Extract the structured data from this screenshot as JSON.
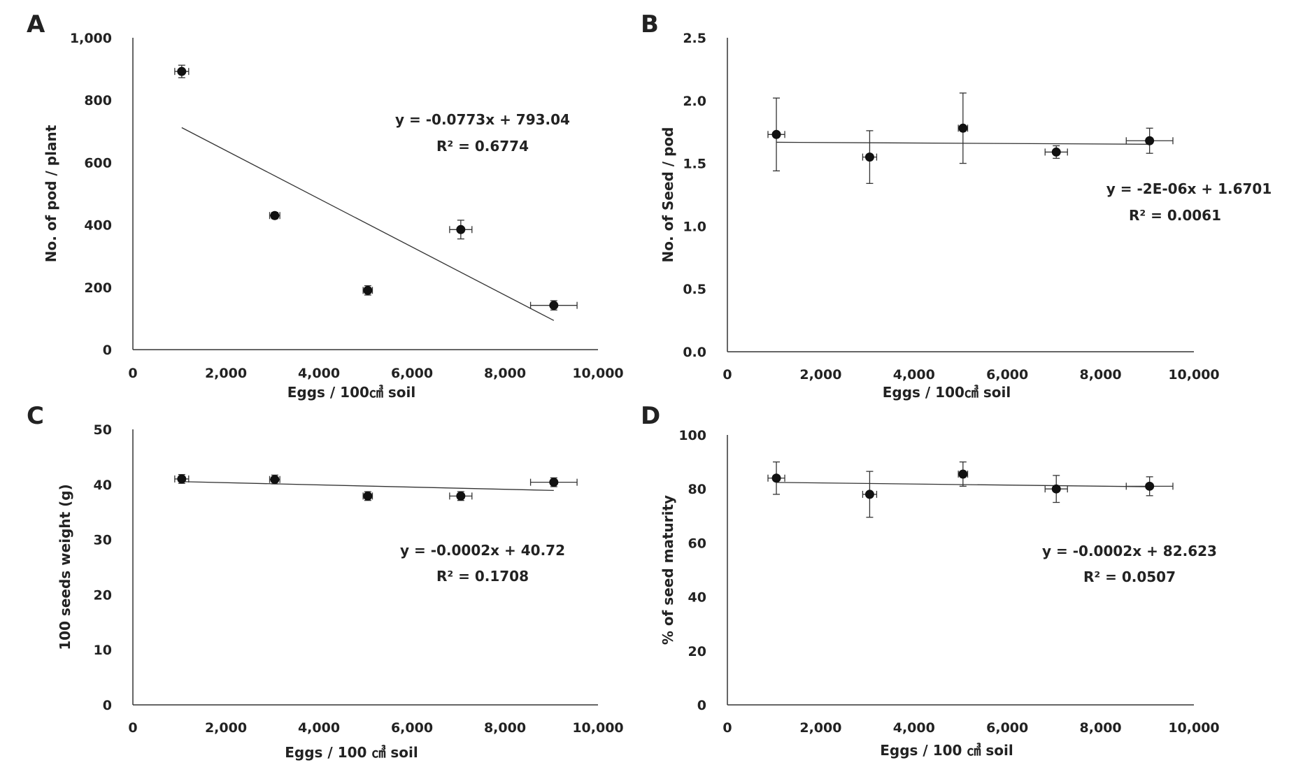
{
  "chart_data": [
    {
      "panel": "A",
      "type": "scatter",
      "xlabel": "Eggs / 100㎤ soil",
      "ylabel": "No. of pod / plant",
      "xlim": [
        0,
        10000
      ],
      "ylim": [
        0,
        1000
      ],
      "xticks": [
        0,
        2000,
        4000,
        6000,
        8000,
        10000
      ],
      "xtick_labels": [
        "0",
        "2,000",
        "4,000",
        "6,000",
        "8,000",
        "10,000"
      ],
      "yticks": [
        0,
        200,
        400,
        600,
        800,
        1000
      ],
      "ytick_labels": [
        "0",
        "200",
        "400",
        "600",
        "800",
        "1,000"
      ],
      "points": [
        {
          "x": 1050,
          "y": 892,
          "xerr": 150,
          "yerr": 20
        },
        {
          "x": 3050,
          "y": 430,
          "xerr": 110,
          "yerr": 10
        },
        {
          "x": 5050,
          "y": 190,
          "xerr": 100,
          "yerr": 15
        },
        {
          "x": 7050,
          "y": 385,
          "xerr": 240,
          "yerr": 30
        },
        {
          "x": 9050,
          "y": 142,
          "xerr": 500,
          "yerr": 15
        }
      ],
      "trendline": {
        "slope": -0.0773,
        "intercept": 793.04,
        "x_range": [
          1050,
          9050
        ]
      },
      "equation": "y = -0.0773x + 793.04",
      "r_squared": "R² = 0.6774"
    },
    {
      "panel": "B",
      "type": "scatter",
      "xlabel": "Eggs / 100㎤ soil",
      "ylabel": "No. of Seed / pod",
      "xlim": [
        0,
        10000
      ],
      "ylim": [
        0,
        2.5
      ],
      "xticks": [
        0,
        2000,
        4000,
        6000,
        8000,
        10000
      ],
      "xtick_labels": [
        "0",
        "2,000",
        "4,000",
        "6,000",
        "8,000",
        "10,000"
      ],
      "yticks": [
        0,
        0.5,
        1.0,
        1.5,
        2.0,
        2.5
      ],
      "ytick_labels": [
        "0.0",
        "0.5",
        "1.0",
        "1.5",
        "2.0",
        "2.5"
      ],
      "points": [
        {
          "x": 1050,
          "y": 1.73,
          "xerr": 180,
          "yerr": 0.29
        },
        {
          "x": 3050,
          "y": 1.55,
          "xerr": 150,
          "yerr": 0.21
        },
        {
          "x": 5050,
          "y": 1.78,
          "xerr": 100,
          "yerr": 0.28
        },
        {
          "x": 7050,
          "y": 1.59,
          "xerr": 240,
          "yerr": 0.05
        },
        {
          "x": 9050,
          "y": 1.68,
          "xerr": 500,
          "yerr": 0.1
        }
      ],
      "trendline": {
        "slope": -2e-06,
        "intercept": 1.6701,
        "x_range": [
          1050,
          9050
        ]
      },
      "equation": "y = -2E-06x + 1.6701",
      "r_squared": "R² = 0.0061"
    },
    {
      "panel": "C",
      "type": "scatter",
      "xlabel": "Eggs / 100 ㎤ soil",
      "ylabel": "100 seeds weight (g)",
      "xlim": [
        0,
        10000
      ],
      "ylim": [
        0,
        50
      ],
      "xticks": [
        0,
        2000,
        4000,
        6000,
        8000,
        10000
      ],
      "xtick_labels": [
        "0",
        "2,000",
        "4,000",
        "6,000",
        "8,000",
        "10,000"
      ],
      "yticks": [
        0,
        10,
        20,
        30,
        40,
        50
      ],
      "ytick_labels": [
        "0",
        "10",
        "20",
        "30",
        "40",
        "50"
      ],
      "points": [
        {
          "x": 1050,
          "y": 41.0,
          "xerr": 150,
          "yerr": 0.8
        },
        {
          "x": 3050,
          "y": 40.9,
          "xerr": 110,
          "yerr": 0.8
        },
        {
          "x": 5050,
          "y": 37.9,
          "xerr": 100,
          "yerr": 0.8
        },
        {
          "x": 7050,
          "y": 37.9,
          "xerr": 240,
          "yerr": 0.8
        },
        {
          "x": 9050,
          "y": 40.4,
          "xerr": 500,
          "yerr": 0.8
        }
      ],
      "trendline": {
        "slope": -0.0002,
        "intercept": 40.72,
        "x_range": [
          1050,
          9050
        ]
      },
      "equation": "y = -0.0002x + 40.72",
      "r_squared": "R² = 0.1708"
    },
    {
      "panel": "D",
      "type": "scatter",
      "xlabel": "Eggs / 100 ㎤ soil",
      "ylabel": "% of seed maturity",
      "xlim": [
        0,
        10000
      ],
      "ylim": [
        0,
        100
      ],
      "xticks": [
        0,
        2000,
        4000,
        6000,
        8000,
        10000
      ],
      "xtick_labels": [
        "0",
        "2,000",
        "4,000",
        "6,000",
        "8,000",
        "10,000"
      ],
      "yticks": [
        0,
        20,
        40,
        60,
        80,
        100
      ],
      "ytick_labels": [
        "0",
        "20",
        "40",
        "60",
        "80",
        "100"
      ],
      "points": [
        {
          "x": 1050,
          "y": 84,
          "xerr": 180,
          "yerr": 6
        },
        {
          "x": 3050,
          "y": 78,
          "xerr": 150,
          "yerr": 8.5
        },
        {
          "x": 5050,
          "y": 85.5,
          "xerr": 100,
          "yerr": 4.5
        },
        {
          "x": 7050,
          "y": 80,
          "xerr": 240,
          "yerr": 5
        },
        {
          "x": 9050,
          "y": 81,
          "xerr": 500,
          "yerr": 3.5
        }
      ],
      "trendline": {
        "slope": -0.0002,
        "intercept": 82.623,
        "x_range": [
          1050,
          9050
        ]
      },
      "equation": "y = -0.0002x + 82.623",
      "r_squared": "R² = 0.0507"
    }
  ]
}
